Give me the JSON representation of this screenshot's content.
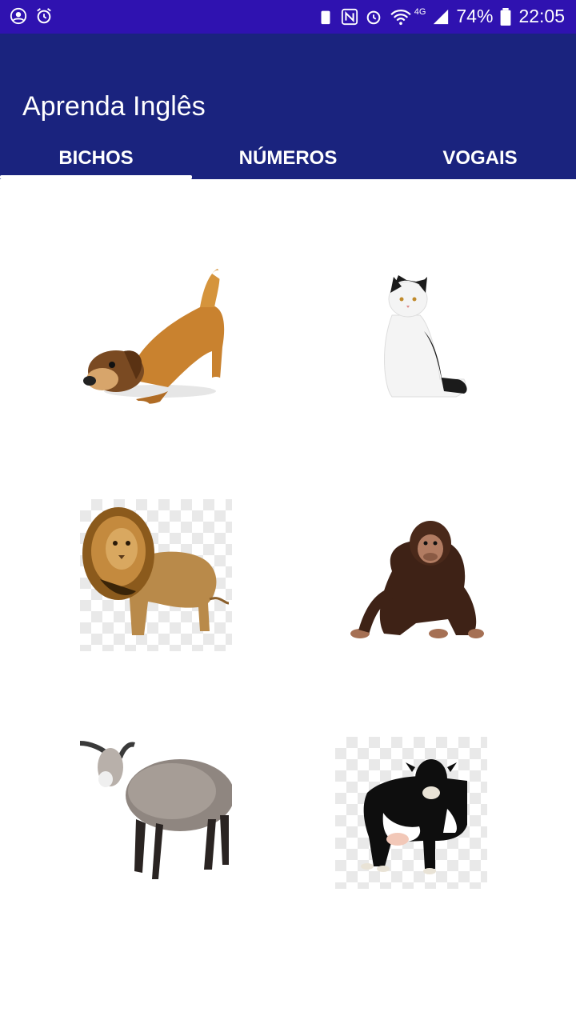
{
  "status_bar": {
    "battery": "74%",
    "time": "22:05",
    "network": "4G"
  },
  "app": {
    "title": "Aprenda Inglês"
  },
  "tabs": [
    {
      "label": "BICHOS",
      "active": true
    },
    {
      "label": "NÚMEROS",
      "active": false
    },
    {
      "label": "VOGAIS",
      "active": false
    }
  ],
  "colors": {
    "status": "#2f12b0",
    "appbar": "#1a237e"
  },
  "animals": [
    {
      "icon": "dog-image"
    },
    {
      "icon": "cat-image"
    },
    {
      "icon": "lion-image"
    },
    {
      "icon": "monkey-image"
    },
    {
      "icon": "sheep-image"
    },
    {
      "icon": "cow-image"
    }
  ]
}
